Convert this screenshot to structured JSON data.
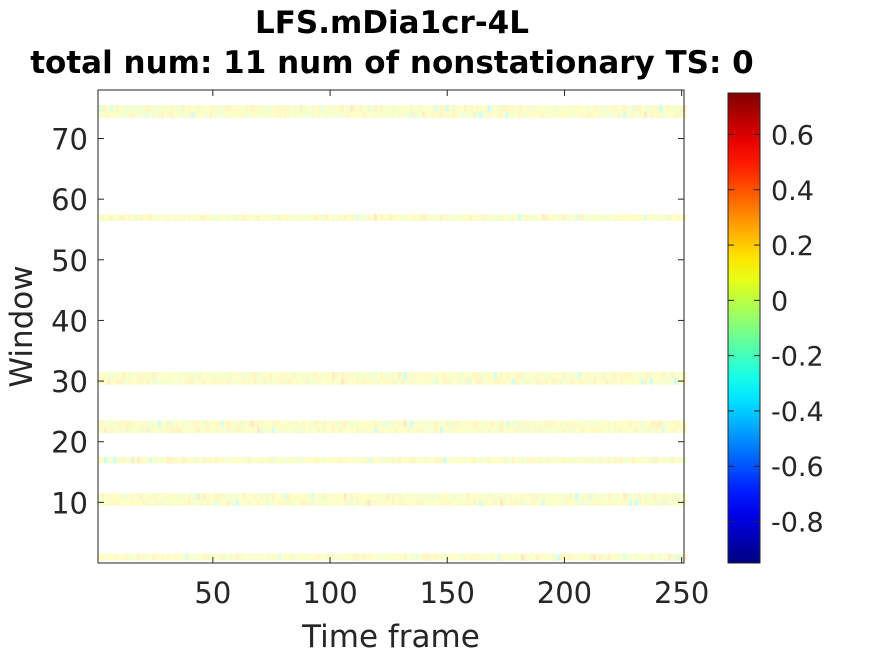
{
  "chart_data": {
    "type": "heatmap",
    "title": "LFS.mDia1cr-4L",
    "subtitle": "total num: 11 num of nonstationary TS: 0",
    "xlabel": "Time frame",
    "ylabel": "Window",
    "xlim": [
      1,
      251
    ],
    "ylim": [
      0,
      78
    ],
    "xticks": [
      50,
      100,
      150,
      200,
      250
    ],
    "yticks": [
      10,
      20,
      30,
      40,
      50,
      60,
      70
    ],
    "colorbar": {
      "colormap": "jet",
      "clim": [
        -0.95,
        0.75
      ],
      "ticks": [
        -0.8,
        -0.6,
        -0.4,
        -0.2,
        0,
        0.2,
        0.4,
        0.6
      ],
      "tick_labels": [
        "-0.8",
        "-0.6",
        "-0.4",
        "-0.2",
        "0",
        "0.2",
        "0.4",
        "0.6"
      ]
    },
    "rows_with_data": [
      1,
      10,
      11,
      17,
      22,
      23,
      30,
      31,
      57,
      74,
      75
    ],
    "value_range_in_rows": [
      -0.3,
      0.3
    ],
    "typical_value": 0.1,
    "grid": false
  }
}
